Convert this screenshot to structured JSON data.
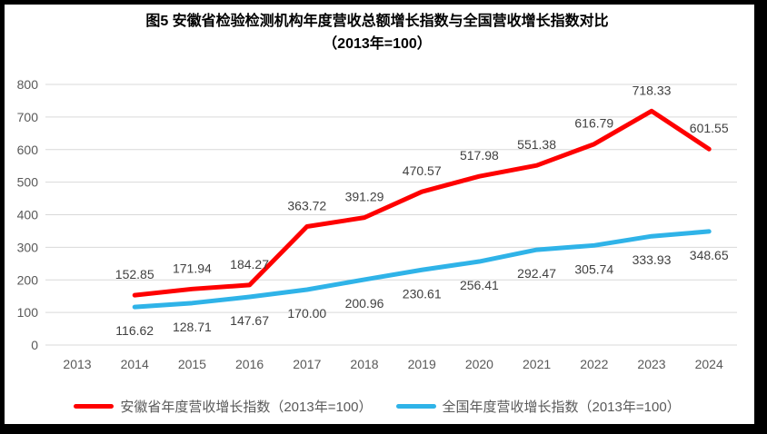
{
  "title": {
    "line1": "图5  安徽省检验检测机构年度营收总额增长指数与全国营收增长指数对比",
    "line2": "（2013年=100）"
  },
  "colors": {
    "anhui": "#fe0000",
    "national": "#2fb3e8",
    "grid": "#d9d9d9",
    "tick_text": "#595959",
    "data_label": "#404040",
    "background": "#ffffff",
    "frame": "#000000"
  },
  "chart_data": {
    "type": "line",
    "title": "图5  安徽省检验检测机构年度营收总额增长指数与全国营收增长指数对比（2013年=100）",
    "categories": [
      "2013",
      "2014",
      "2015",
      "2016",
      "2017",
      "2018",
      "2019",
      "2020",
      "2021",
      "2022",
      "2023",
      "2024"
    ],
    "series": [
      {
        "name": "安徽省年度营收增长指数（2013年=100）",
        "color_key": "anhui",
        "label_position": "above",
        "values": [
          null,
          152.85,
          171.94,
          184.27,
          363.72,
          391.29,
          470.57,
          517.98,
          551.38,
          616.79,
          718.33,
          601.55
        ]
      },
      {
        "name": "全国年度营收增长指数（2013年=100）",
        "color_key": "national",
        "label_position": "below",
        "values": [
          null,
          116.62,
          128.71,
          147.67,
          170.0,
          200.96,
          230.61,
          256.41,
          292.47,
          305.74,
          333.93,
          348.65
        ]
      }
    ],
    "xlabel": "",
    "ylabel": "",
    "ylim": [
      0,
      800
    ],
    "ytick_step": 100,
    "grid": true,
    "legend_position": "bottom",
    "data_labels_decimals": 2
  }
}
